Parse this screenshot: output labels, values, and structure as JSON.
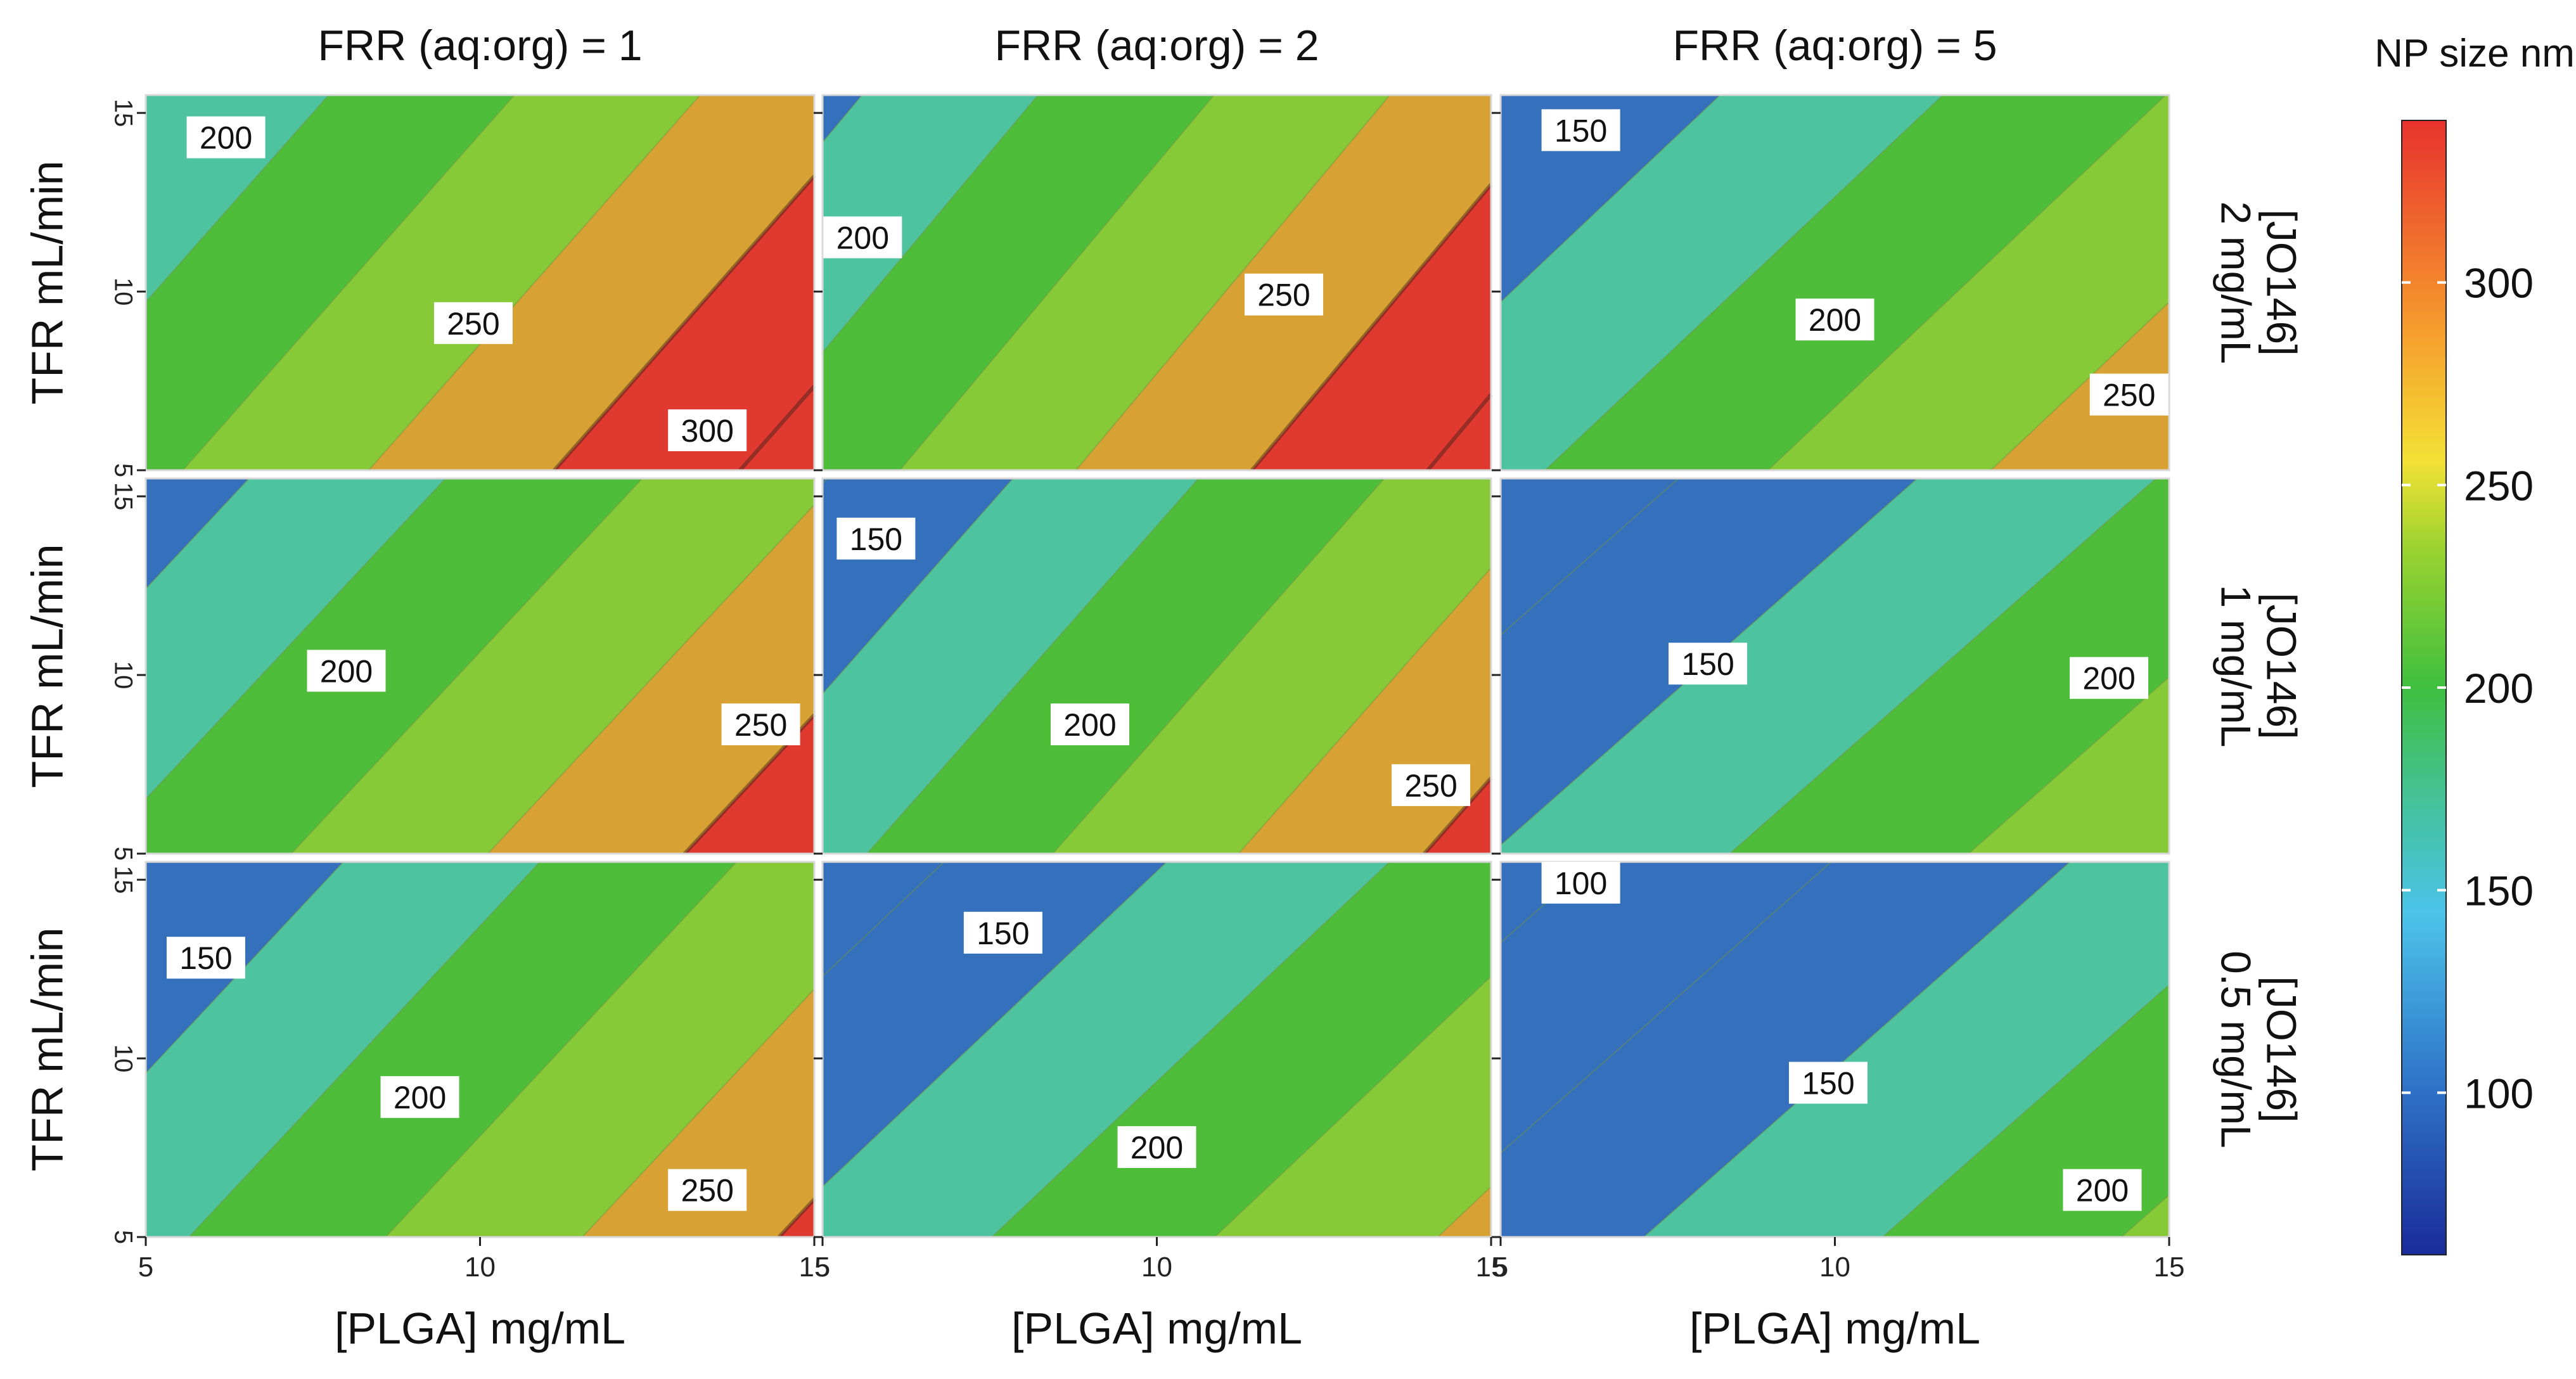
{
  "chart_data": {
    "type": "contour",
    "xlabel": "[PLGA] mg/mL",
    "ylabel": "TFR mL/min",
    "x_ticks": [
      5,
      10,
      15
    ],
    "y_ticks": [
      5,
      10,
      15
    ],
    "xlim": [
      5,
      15
    ],
    "ylim": [
      5,
      15.5
    ],
    "column_titles": [
      "FRR (aq:org) = 1",
      "FRR (aq:org) = 2",
      "FRR (aq:org) = 5"
    ],
    "row_titles": [
      [
        "[JO146]",
        "2 mg/mL"
      ],
      [
        "[JO146]",
        "1 mg/mL"
      ],
      [
        "[JO146]",
        "0.5 mg/mL"
      ]
    ],
    "colorbar": {
      "title": "NP size nm",
      "range": [
        60,
        340
      ],
      "ticks": [
        100,
        150,
        200,
        250,
        300
      ]
    },
    "contour_step": 50,
    "panels": [
      {
        "row": 0,
        "col": 0,
        "params": [
          190,
          18,
          -8.5
        ],
        "labels": [
          {
            "value": 200,
            "x": 6.2,
            "y": 14.3
          },
          {
            "value": 250,
            "x": 9.9,
            "y": 9.1
          },
          {
            "value": 300,
            "x": 13.4,
            "y": 6.1
          }
        ]
      },
      {
        "row": 0,
        "col": 1,
        "params": [
          178,
          19,
          -8.5
        ],
        "labels": [
          {
            "value": 200,
            "x": 5.6,
            "y": 11.5
          },
          {
            "value": 250,
            "x": 11.9,
            "y": 9.9
          }
        ]
      },
      {
        "row": 0,
        "col": 2,
        "params": [
          140,
          15,
          -8.5
        ],
        "labels": [
          {
            "value": 150,
            "x": 6.2,
            "y": 14.5
          },
          {
            "value": 200,
            "x": 10.0,
            "y": 9.2
          },
          {
            "value": 250,
            "x": 14.4,
            "y": 7.1
          }
        ]
      },
      {
        "row": 1,
        "col": 0,
        "params": [
          163,
          17,
          -8.5
        ],
        "labels": [
          {
            "value": 200,
            "x": 8.0,
            "y": 10.1
          },
          {
            "value": 250,
            "x": 14.2,
            "y": 8.6
          }
        ]
      },
      {
        "row": 1,
        "col": 1,
        "params": [
          138,
          18,
          -8.5
        ],
        "labels": [
          {
            "value": 150,
            "x": 5.8,
            "y": 13.8
          },
          {
            "value": 200,
            "x": 9.0,
            "y": 8.6
          },
          {
            "value": 250,
            "x": 14.1,
            "y": 6.9
          }
        ]
      },
      {
        "row": 1,
        "col": 2,
        "params": [
          102,
          14,
          -8.5
        ],
        "labels": [
          {
            "value": 150,
            "x": 8.1,
            "y": 10.3
          },
          {
            "value": 200,
            "x": 14.1,
            "y": 9.9
          }
        ]
      },
      {
        "row": 2,
        "col": 0,
        "params": [
          139,
          17,
          -8.5
        ],
        "labels": [
          {
            "value": 150,
            "x": 5.9,
            "y": 12.8
          },
          {
            "value": 200,
            "x": 9.1,
            "y": 8.9
          },
          {
            "value": 250,
            "x": 13.4,
            "y": 6.3
          }
        ]
      },
      {
        "row": 2,
        "col": 1,
        "params": [
          112,
          15,
          -8.5
        ],
        "labels": [
          {
            "value": 150,
            "x": 7.7,
            "y": 13.5
          },
          {
            "value": 200,
            "x": 10.0,
            "y": 7.5
          }
        ]
      },
      {
        "row": 2,
        "col": 2,
        "params": [
          70,
          14,
          -8.5
        ],
        "labels": [
          {
            "value": 100,
            "x": 6.2,
            "y": 14.9
          },
          {
            "value": 150,
            "x": 9.9,
            "y": 9.3
          },
          {
            "value": 200,
            "x": 14.0,
            "y": 6.3
          }
        ]
      }
    ]
  }
}
